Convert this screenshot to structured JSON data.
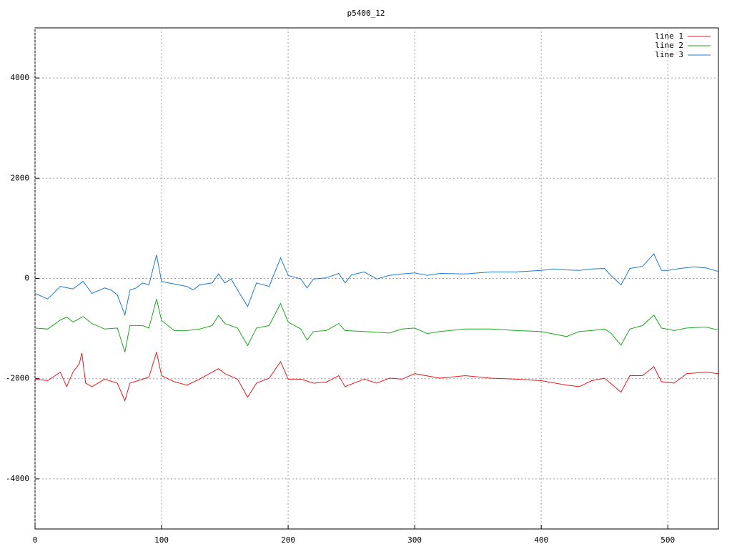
{
  "chart_data": {
    "type": "line",
    "title": "p5400_12",
    "xlim": [
      0,
      540
    ],
    "ylim": [
      -5000,
      5000
    ],
    "xticks": [
      0,
      100,
      200,
      300,
      400,
      500
    ],
    "yticks": [
      -4000,
      -2000,
      0,
      2000,
      4000
    ],
    "grid": true,
    "legend": "top-right",
    "series": [
      {
        "name": "line 1",
        "color": "#e41a1c",
        "x": [
          0,
          10,
          20,
          25,
          30,
          35,
          37,
          40,
          45,
          55,
          65,
          71,
          75,
          85,
          90,
          96,
          100,
          110,
          120,
          130,
          140,
          145,
          150,
          160,
          168,
          175,
          185,
          194,
          200,
          210,
          220,
          230,
          240,
          245,
          260,
          270,
          280,
          290,
          300,
          320,
          340,
          360,
          380,
          400,
          420,
          430,
          440,
          450,
          463,
          470,
          480,
          489,
          495,
          505,
          515,
          530,
          540
        ],
        "values": [
          -2010,
          -2040,
          -1870,
          -2160,
          -1870,
          -1700,
          -1490,
          -2090,
          -2160,
          -2010,
          -2090,
          -2440,
          -2090,
          -2010,
          -1970,
          -1470,
          -1940,
          -2060,
          -2130,
          -2010,
          -1870,
          -1800,
          -1900,
          -2010,
          -2370,
          -2090,
          -1990,
          -1660,
          -2010,
          -2010,
          -2090,
          -2070,
          -1940,
          -2160,
          -2010,
          -2090,
          -1990,
          -2010,
          -1900,
          -1990,
          -1940,
          -1990,
          -2010,
          -2040,
          -2130,
          -2160,
          -2040,
          -1990,
          -2270,
          -1940,
          -1940,
          -1760,
          -2060,
          -2090,
          -1900,
          -1870,
          -1900
        ]
      },
      {
        "name": "line 2",
        "color": "#1ea81e",
        "x": [
          0,
          10,
          20,
          25,
          30,
          38,
          45,
          55,
          65,
          71,
          75,
          85,
          90,
          96,
          100,
          110,
          120,
          130,
          140,
          145,
          150,
          160,
          168,
          175,
          185,
          194,
          200,
          210,
          215,
          220,
          230,
          240,
          245,
          260,
          280,
          290,
          300,
          310,
          320,
          340,
          360,
          380,
          400,
          420,
          430,
          440,
          450,
          455,
          463,
          470,
          480,
          489,
          495,
          505,
          515,
          530,
          540
        ],
        "values": [
          -990,
          -1010,
          -830,
          -770,
          -870,
          -760,
          -900,
          -1010,
          -990,
          -1470,
          -940,
          -940,
          -990,
          -410,
          -840,
          -1040,
          -1040,
          -1010,
          -940,
          -740,
          -900,
          -990,
          -1340,
          -990,
          -940,
          -500,
          -870,
          -1010,
          -1230,
          -1060,
          -1040,
          -900,
          -1040,
          -1060,
          -1090,
          -1010,
          -990,
          -1100,
          -1060,
          -1010,
          -1010,
          -1040,
          -1060,
          -1160,
          -1060,
          -1040,
          -1010,
          -1090,
          -1330,
          -1010,
          -940,
          -730,
          -990,
          -1040,
          -990,
          -970,
          -1030
        ]
      },
      {
        "name": "line 3",
        "color": "#1f78d1",
        "x": [
          0,
          10,
          20,
          30,
          38,
          45,
          55,
          60,
          65,
          71,
          75,
          80,
          85,
          90,
          96,
          100,
          110,
          120,
          125,
          130,
          140,
          145,
          150,
          155,
          160,
          168,
          175,
          185,
          194,
          200,
          210,
          215,
          220,
          230,
          240,
          245,
          250,
          260,
          270,
          280,
          290,
          300,
          310,
          320,
          340,
          360,
          380,
          400,
          410,
          420,
          430,
          440,
          450,
          455,
          463,
          470,
          480,
          489,
          495,
          500,
          510,
          520,
          530,
          540
        ],
        "values": [
          -300,
          -410,
          -160,
          -210,
          -60,
          -300,
          -190,
          -230,
          -330,
          -730,
          -230,
          -190,
          -90,
          -130,
          470,
          -60,
          -110,
          -160,
          -230,
          -130,
          -90,
          90,
          -90,
          -10,
          -230,
          -560,
          -90,
          -160,
          410,
          60,
          -10,
          -190,
          -10,
          10,
          100,
          -90,
          70,
          130,
          -10,
          60,
          90,
          110,
          60,
          100,
          90,
          130,
          130,
          160,
          190,
          170,
          160,
          190,
          200,
          60,
          -130,
          200,
          240,
          490,
          160,
          160,
          200,
          230,
          210,
          140
        ]
      }
    ]
  }
}
